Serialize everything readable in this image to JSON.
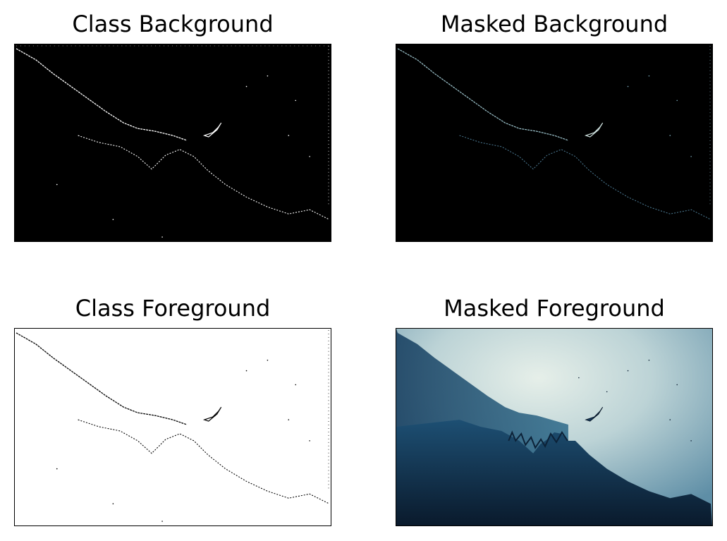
{
  "figure": {
    "panels": [
      {
        "title": "Class Background",
        "content": "binary class mask (background class): white edge pixels on black"
      },
      {
        "title": "Masked Background",
        "content": "original image masked by background class: faint cyan edges on black"
      },
      {
        "title": "Class Foreground",
        "content": "binary class mask (foreground class): black edge pixels on white"
      },
      {
        "title": "Masked Foreground",
        "content": "original image masked by foreground class: misty blue sky, dark forested slope, flying bird"
      }
    ]
  },
  "colors": {
    "background": "#ffffff",
    "mask_dark": "#000000",
    "mask_light": "#ffffff",
    "edge_cyan": "#7aa7b8",
    "sky_light": "#dbe8e4",
    "sky_mid": "#8fb3bd",
    "forest_dark": "#0b1e33",
    "forest_mid": "#123a5c"
  }
}
